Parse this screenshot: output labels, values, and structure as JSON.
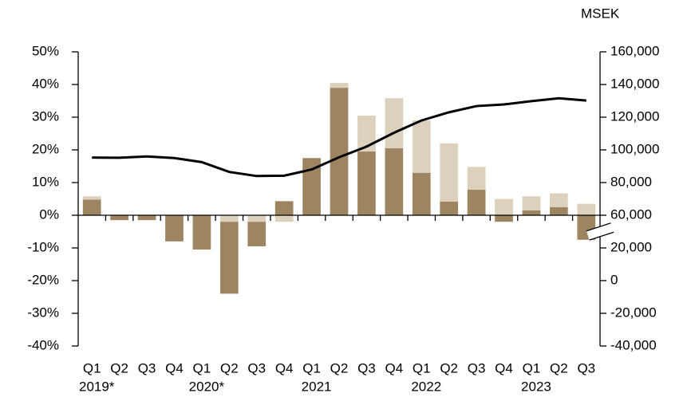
{
  "chart_data": {
    "type": "bar-line",
    "y2_label": "MSEK",
    "categories": [
      "Q1",
      "Q2",
      "Q3",
      "Q4",
      "Q1",
      "Q2",
      "Q3",
      "Q4",
      "Q1",
      "Q2",
      "Q3",
      "Q4",
      "Q1",
      "Q2",
      "Q3",
      "Q4",
      "Q1",
      "Q2",
      "Q3"
    ],
    "years": [
      "2019*",
      null,
      null,
      null,
      "2020*",
      null,
      null,
      null,
      "2021",
      null,
      null,
      null,
      "2022",
      null,
      null,
      null,
      "2023",
      null,
      null
    ],
    "series": [
      {
        "type": "bar",
        "color": "#9c8560",
        "values": [
          4.8,
          -1.5,
          -1.5,
          -8,
          -10.5,
          -22,
          -7.5,
          4.3,
          17.5,
          39,
          19.5,
          20.5,
          13,
          4.2,
          7.8,
          -2,
          1.5,
          2.5,
          -7.5
        ]
      },
      {
        "type": "bar",
        "color": "#dcd1bd",
        "values": [
          1,
          0,
          0,
          0,
          0,
          -2,
          -2,
          -2,
          0,
          1.5,
          11,
          15.3,
          16,
          17.8,
          7,
          5,
          4.3,
          4.2,
          3.5
        ]
      },
      {
        "type": "line",
        "axis": "y2",
        "color": "#000000",
        "values": [
          95300,
          95200,
          96000,
          95000,
          92500,
          86500,
          84000,
          84200,
          88000,
          95500,
          102000,
          110500,
          118000,
          123000,
          126800,
          127800,
          129800,
          131600,
          130200
        ]
      }
    ],
    "ylim": [
      -40,
      50
    ],
    "yticks": [
      {
        "value": -40,
        "label": "-40%"
      },
      {
        "value": -30,
        "label": "-30%"
      },
      {
        "value": -20,
        "label": "-20%"
      },
      {
        "value": -10,
        "label": "-10%"
      },
      {
        "value": 0,
        "label": "0%"
      },
      {
        "value": 10,
        "label": "10%"
      },
      {
        "value": 20,
        "label": "20%"
      },
      {
        "value": 30,
        "label": "30%"
      },
      {
        "value": 40,
        "label": "40%"
      },
      {
        "value": 50,
        "label": "50%"
      }
    ],
    "y2lim": [
      -40000,
      160000
    ],
    "y2_break": [
      20000,
      60000
    ],
    "y2ticks": [
      {
        "value": -40000,
        "label": "-40,000"
      },
      {
        "value": -20000,
        "label": "-20,000"
      },
      0,
      {
        "value": 20000,
        "label": "20,000"
      },
      {
        "value": 60000,
        "label": "60,000"
      },
      {
        "value": 80000,
        "label": "80,000"
      },
      {
        "value": 100000,
        "label": "100,000"
      },
      {
        "value": 120000,
        "label": "120,000"
      },
      {
        "value": 140000,
        "label": "140,000"
      },
      {
        "value": 160000,
        "label": "160,000"
      }
    ],
    "grid": false
  }
}
